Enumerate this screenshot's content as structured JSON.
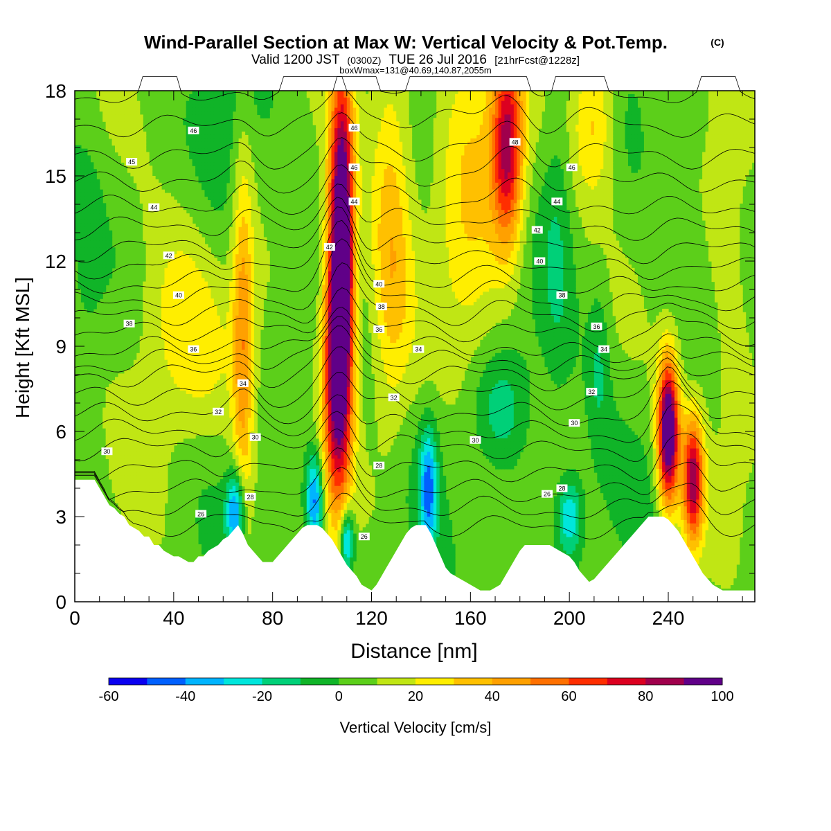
{
  "title": {
    "main": "Wind-Parallel Section at Max W: Vertical Velocity & Pot.Temp.",
    "copyright": "(C)",
    "valid_prefix": "Valid 1200 JST",
    "valid_utc": "(0300Z)",
    "valid_date": "TUE 26 Jul 2016",
    "forecast": "[21hrFcst@1228z]",
    "box_info": "boxWmax=131@40.69,140.87,2055m"
  },
  "chart_data": {
    "type": "heatmap",
    "xlabel": "Distance [nm]",
    "ylabel": "Height [Kft MSL]",
    "xlim": [
      0,
      275
    ],
    "ylim": [
      0,
      18
    ],
    "x_ticks": [
      0,
      40,
      80,
      120,
      160,
      200,
      240
    ],
    "y_ticks": [
      0,
      3,
      6,
      9,
      12,
      15,
      18
    ],
    "x_minor_step": 10,
    "y_minor_step": 1,
    "colorbar": {
      "label": "Vertical Velocity [cm/s]",
      "ticks": [
        -60,
        -40,
        -20,
        0,
        20,
        40,
        60,
        80,
        100
      ],
      "bounds": [
        -60,
        100
      ],
      "step": 10,
      "colors": [
        "#0a00f0",
        "#0060ff",
        "#00b4ff",
        "#00e6dc",
        "#00d078",
        "#10b428",
        "#5ccf1a",
        "#c0e614",
        "#ffee00",
        "#ffc000",
        "#ffa000",
        "#ff7000",
        "#ff2e00",
        "#dc0020",
        "#a0004c",
        "#600088"
      ]
    },
    "terrain": [
      [
        0,
        4.3
      ],
      [
        8,
        4.3
      ],
      [
        10,
        4.0
      ],
      [
        12,
        3.7
      ],
      [
        14,
        3.4
      ],
      [
        16,
        3.3
      ],
      [
        18,
        3.1
      ],
      [
        20,
        3.0
      ],
      [
        22,
        2.7
      ],
      [
        24,
        2.6
      ],
      [
        26,
        2.5
      ],
      [
        28,
        2.3
      ],
      [
        30,
        2.3
      ],
      [
        32,
        2.0
      ],
      [
        34,
        2.0
      ],
      [
        36,
        1.8
      ],
      [
        38,
        1.7
      ],
      [
        40,
        1.6
      ],
      [
        42,
        1.6
      ],
      [
        44,
        1.5
      ],
      [
        46,
        1.4
      ],
      [
        48,
        1.4
      ],
      [
        50,
        1.6
      ],
      [
        52,
        1.6
      ],
      [
        54,
        1.8
      ],
      [
        56,
        1.9
      ],
      [
        58,
        2.0
      ],
      [
        60,
        2.2
      ],
      [
        62,
        2.3
      ],
      [
        64,
        2.5
      ],
      [
        66,
        2.7
      ],
      [
        68,
        2.4
      ],
      [
        70,
        2.0
      ],
      [
        72,
        1.8
      ],
      [
        74,
        1.6
      ],
      [
        76,
        1.4
      ],
      [
        78,
        1.4
      ],
      [
        80,
        1.4
      ],
      [
        82,
        1.6
      ],
      [
        84,
        1.8
      ],
      [
        86,
        2.0
      ],
      [
        88,
        2.2
      ],
      [
        90,
        2.4
      ],
      [
        92,
        2.6
      ],
      [
        94,
        2.7
      ],
      [
        96,
        2.7
      ],
      [
        98,
        2.7
      ],
      [
        100,
        2.6
      ],
      [
        102,
        2.4
      ],
      [
        104,
        2.2
      ],
      [
        106,
        1.9
      ],
      [
        108,
        1.6
      ],
      [
        110,
        1.3
      ],
      [
        112,
        1.1
      ],
      [
        114,
        0.9
      ],
      [
        116,
        0.6
      ],
      [
        118,
        0.5
      ],
      [
        120,
        0.4
      ],
      [
        122,
        0.6
      ],
      [
        124,
        0.9
      ],
      [
        126,
        1.2
      ],
      [
        128,
        1.5
      ],
      [
        130,
        1.8
      ],
      [
        132,
        2.1
      ],
      [
        134,
        2.4
      ],
      [
        136,
        2.6
      ],
      [
        138,
        2.7
      ],
      [
        140,
        2.7
      ],
      [
        142,
        2.7
      ],
      [
        144,
        2.4
      ],
      [
        146,
        2.0
      ],
      [
        148,
        1.6
      ],
      [
        150,
        1.2
      ],
      [
        152,
        1.0
      ],
      [
        154,
        0.9
      ],
      [
        156,
        0.8
      ],
      [
        158,
        0.7
      ],
      [
        160,
        0.6
      ],
      [
        162,
        0.5
      ],
      [
        164,
        0.4
      ],
      [
        166,
        0.4
      ],
      [
        168,
        0.4
      ],
      [
        170,
        0.5
      ],
      [
        172,
        0.6
      ],
      [
        174,
        0.9
      ],
      [
        176,
        1.2
      ],
      [
        178,
        1.5
      ],
      [
        180,
        1.8
      ],
      [
        182,
        2.0
      ],
      [
        184,
        2.0
      ],
      [
        186,
        2.0
      ],
      [
        188,
        2.0
      ],
      [
        190,
        2.0
      ],
      [
        192,
        2.0
      ],
      [
        194,
        1.9
      ],
      [
        196,
        1.8
      ],
      [
        198,
        1.7
      ],
      [
        200,
        1.6
      ],
      [
        202,
        1.4
      ],
      [
        204,
        1.1
      ],
      [
        206,
        0.9
      ],
      [
        208,
        0.7
      ],
      [
        210,
        0.8
      ],
      [
        212,
        1.0
      ],
      [
        214,
        1.2
      ],
      [
        216,
        1.4
      ],
      [
        218,
        1.6
      ],
      [
        220,
        1.8
      ],
      [
        222,
        2.0
      ],
      [
        224,
        2.2
      ],
      [
        226,
        2.4
      ],
      [
        228,
        2.6
      ],
      [
        230,
        2.8
      ],
      [
        232,
        3.0
      ],
      [
        234,
        3.0
      ],
      [
        236,
        3.0
      ],
      [
        238,
        3.0
      ],
      [
        240,
        2.9
      ],
      [
        242,
        2.7
      ],
      [
        244,
        2.5
      ],
      [
        246,
        2.2
      ],
      [
        248,
        1.9
      ],
      [
        250,
        1.6
      ],
      [
        252,
        1.3
      ],
      [
        254,
        1.0
      ],
      [
        256,
        0.8
      ],
      [
        258,
        0.6
      ],
      [
        260,
        0.5
      ],
      [
        262,
        0.4
      ],
      [
        264,
        0.4
      ],
      [
        266,
        0.4
      ],
      [
        268,
        0.4
      ],
      [
        270,
        0.4
      ],
      [
        272,
        0.4
      ],
      [
        275,
        0.4
      ]
    ],
    "updrafts": [
      {
        "x": 108,
        "y": 12.0,
        "w": 120,
        "sx": 3.5,
        "sy": 4.5
      },
      {
        "x": 105,
        "y": 8.0,
        "w": 55,
        "sx": 4.0,
        "sy": 3.5
      },
      {
        "x": 175,
        "y": 16.0,
        "w": 75,
        "sx": 4.5,
        "sy": 2.5
      },
      {
        "x": 240,
        "y": 6.0,
        "w": 110,
        "sx": 3.0,
        "sy": 1.8
      },
      {
        "x": 250,
        "y": 4.3,
        "w": 80,
        "sx": 3.0,
        "sy": 1.6
      },
      {
        "x": 68,
        "y": 9.0,
        "w": 38,
        "sx": 3.0,
        "sy": 5.0
      },
      {
        "x": 45,
        "y": 9.5,
        "w": 22,
        "sx": 18.0,
        "sy": 3.0
      },
      {
        "x": 128,
        "y": 13.0,
        "w": 32,
        "sx": 6.0,
        "sy": 5.0
      },
      {
        "x": 160,
        "y": 15.0,
        "w": 26,
        "sx": 10.0,
        "sy": 5.0
      },
      {
        "x": 210,
        "y": 17.0,
        "w": 30,
        "sx": 6.0,
        "sy": 2.0
      },
      {
        "x": 265,
        "y": 12.0,
        "w": 12,
        "sx": 8.0,
        "sy": 6.0
      }
    ],
    "downdrafts": [
      {
        "x": 65,
        "y": 3.2,
        "w": -50,
        "sx": 2.5,
        "sy": 1.0
      },
      {
        "x": 97,
        "y": 3.6,
        "w": -50,
        "sx": 2.5,
        "sy": 1.2
      },
      {
        "x": 110,
        "y": 2.2,
        "w": -50,
        "sx": 2.0,
        "sy": 0.8
      },
      {
        "x": 143,
        "y": 4.0,
        "w": -45,
        "sx": 2.5,
        "sy": 1.5
      },
      {
        "x": 200,
        "y": 3.0,
        "w": -35,
        "sx": 3.5,
        "sy": 1.0
      },
      {
        "x": 172,
        "y": 6.8,
        "w": -20,
        "sx": 8.0,
        "sy": 1.5
      },
      {
        "x": 212,
        "y": 8.5,
        "w": -15,
        "sx": 3.0,
        "sy": 2.0
      },
      {
        "x": 5,
        "y": 12.5,
        "w": -12,
        "sx": 4.0,
        "sy": 2.0
      },
      {
        "x": 195,
        "y": 13.0,
        "w": -12,
        "sx": 4.0,
        "sy": 4.0
      },
      {
        "x": 60,
        "y": 14.0,
        "w": -10,
        "sx": 8.0,
        "sy": 4.0
      }
    ],
    "isentropes": {
      "start": 26,
      "end": 48,
      "step": 1,
      "base_height": {
        "26": 2.6,
        "28": 3.8,
        "30": 5.3,
        "32": 6.5,
        "34": 7.8,
        "36": 8.7,
        "38": 9.9,
        "40": 11.0,
        "42": 12.3,
        "44": 13.8,
        "46": 15.6,
        "48": 17.8
      }
    },
    "contour_labels": [
      {
        "text": "46",
        "x": 48,
        "y": 16.6
      },
      {
        "text": "45",
        "x": 23,
        "y": 15.5
      },
      {
        "text": "44",
        "x": 32,
        "y": 13.9
      },
      {
        "text": "42",
        "x": 38,
        "y": 12.2
      },
      {
        "text": "40",
        "x": 42,
        "y": 10.8
      },
      {
        "text": "38",
        "x": 22,
        "y": 9.8
      },
      {
        "text": "36",
        "x": 48,
        "y": 8.9
      },
      {
        "text": "34",
        "x": 68,
        "y": 7.7
      },
      {
        "text": "32",
        "x": 58,
        "y": 6.7
      },
      {
        "text": "30",
        "x": 13,
        "y": 5.3
      },
      {
        "text": "30",
        "x": 73,
        "y": 5.8
      },
      {
        "text": "28",
        "x": 71,
        "y": 3.7
      },
      {
        "text": "26",
        "x": 51,
        "y": 3.1
      },
      {
        "text": "26",
        "x": 117,
        "y": 2.3
      },
      {
        "text": "28",
        "x": 123,
        "y": 4.8
      },
      {
        "text": "32",
        "x": 129,
        "y": 7.2
      },
      {
        "text": "34",
        "x": 139,
        "y": 8.9
      },
      {
        "text": "36",
        "x": 123,
        "y": 9.6
      },
      {
        "text": "38",
        "x": 124,
        "y": 10.4
      },
      {
        "text": "40",
        "x": 123,
        "y": 11.2
      },
      {
        "text": "42",
        "x": 103,
        "y": 12.5
      },
      {
        "text": "44",
        "x": 113,
        "y": 14.1
      },
      {
        "text": "46",
        "x": 113,
        "y": 15.3
      },
      {
        "text": "46",
        "x": 113,
        "y": 16.7
      },
      {
        "text": "48",
        "x": 178,
        "y": 16.2
      },
      {
        "text": "46",
        "x": 201,
        "y": 15.3
      },
      {
        "text": "44",
        "x": 195,
        "y": 14.1
      },
      {
        "text": "42",
        "x": 187,
        "y": 13.1
      },
      {
        "text": "40",
        "x": 188,
        "y": 12.0
      },
      {
        "text": "38",
        "x": 197,
        "y": 10.8
      },
      {
        "text": "36",
        "x": 211,
        "y": 9.7
      },
      {
        "text": "34",
        "x": 214,
        "y": 8.9
      },
      {
        "text": "32",
        "x": 209,
        "y": 7.4
      },
      {
        "text": "30",
        "x": 202,
        "y": 6.3
      },
      {
        "text": "30",
        "x": 162,
        "y": 5.7
      },
      {
        "text": "28",
        "x": 197,
        "y": 4.0
      },
      {
        "text": "26",
        "x": 191,
        "y": 3.8
      }
    ]
  }
}
